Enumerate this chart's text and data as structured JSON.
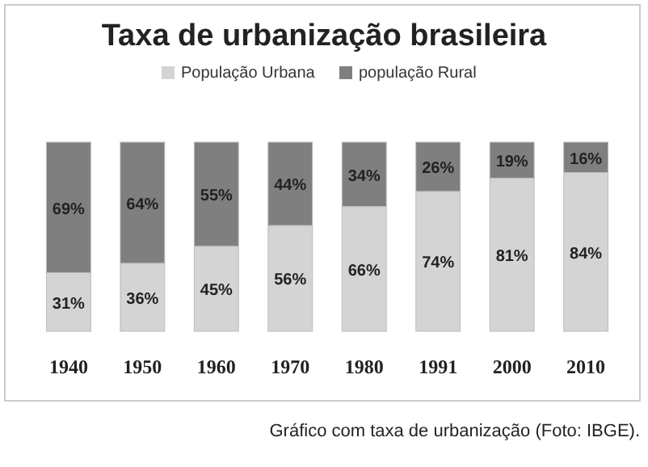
{
  "chart_data": {
    "type": "bar",
    "title": "Taxa de urbanização brasileira",
    "categories": [
      "1940",
      "1950",
      "1960",
      "1970",
      "1980",
      "1991",
      "2000",
      "2010"
    ],
    "stacked": true,
    "legend": "top",
    "series": [
      {
        "name": "População Urbana",
        "color": "#d4d4d4",
        "values": [
          31,
          36,
          45,
          56,
          66,
          74,
          81,
          84
        ],
        "value_labels": [
          "31%",
          "36%",
          "45%",
          "56%",
          "66%",
          "74%",
          "81%",
          "84%"
        ]
      },
      {
        "name": "população Rural",
        "color": "#7f7f7f",
        "values": [
          69,
          64,
          55,
          44,
          34,
          26,
          19,
          16
        ],
        "value_labels": [
          "69%",
          "64%",
          "55%",
          "44%",
          "34%",
          "26%",
          "19%",
          "16%"
        ]
      }
    ],
    "annotations": [
      "Gráfico com taxa de urbanização (Foto: IBGE)."
    ]
  }
}
